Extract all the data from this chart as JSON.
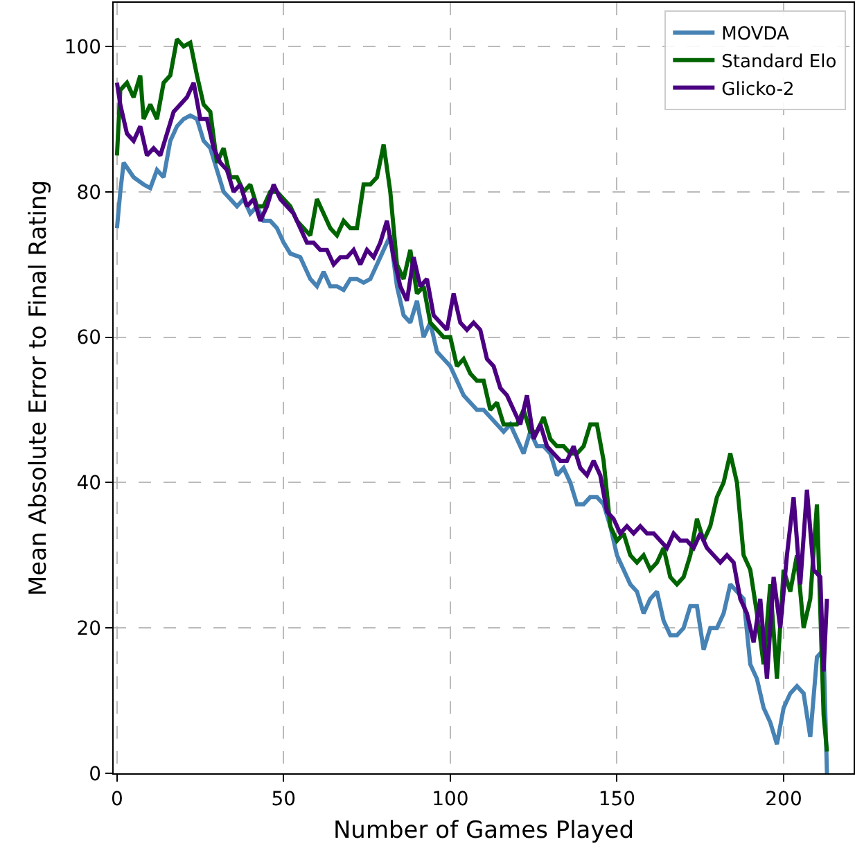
{
  "chart_data": {
    "type": "line",
    "xlabel": "Number of Games Played",
    "ylabel": "Mean Absolute Error to Final Rating",
    "xlim": [
      -1,
      221
    ],
    "xticks": [
      0,
      50,
      100,
      150,
      200
    ],
    "ylim": [
      0,
      106
    ],
    "yticks": [
      0,
      20,
      40,
      60,
      80,
      100
    ],
    "grid": true,
    "legend": "top right",
    "line_style": "solid",
    "marker": "none",
    "series": [
      {
        "name": "MOVDA",
        "color": "#4682b4",
        "x": [
          0,
          1,
          2,
          5,
          8,
          10,
          12,
          14,
          16,
          18,
          20,
          22,
          24,
          26,
          28,
          30,
          32,
          34,
          36,
          38,
          40,
          42,
          44,
          46,
          48,
          50,
          52,
          55,
          58,
          60,
          62,
          64,
          66,
          68,
          70,
          72,
          74,
          76,
          78,
          80,
          82,
          84,
          86,
          88,
          90,
          92,
          94,
          96,
          98,
          100,
          102,
          104,
          106,
          108,
          110,
          112,
          114,
          116,
          118,
          120,
          122,
          124,
          126,
          128,
          130,
          132,
          134,
          136,
          138,
          140,
          142,
          144,
          146,
          148,
          150,
          152,
          154,
          156,
          158,
          160,
          162,
          164,
          166,
          168,
          170,
          172,
          174,
          176,
          178,
          180,
          182,
          184,
          186,
          188,
          190,
          192,
          194,
          196,
          198,
          200,
          202,
          204,
          206,
          208,
          210,
          212,
          213
        ],
        "values": [
          75,
          80,
          84,
          82,
          81,
          80.5,
          83,
          82,
          87,
          89,
          90,
          90.5,
          90,
          87,
          86,
          83,
          80,
          79,
          78,
          79,
          77,
          78,
          76,
          76,
          75,
          73,
          71.5,
          71,
          68,
          67,
          69,
          67,
          67,
          66.5,
          68,
          68,
          67.5,
          68,
          70,
          72,
          74,
          67,
          63,
          62,
          65,
          60,
          62,
          58,
          57,
          56,
          54,
          52,
          51,
          50,
          50,
          49,
          48,
          47,
          48,
          46,
          44,
          47,
          45,
          45,
          44,
          41,
          42,
          40,
          37,
          37,
          38,
          38,
          37,
          34,
          30,
          28,
          26,
          25,
          22,
          24,
          25,
          21,
          19,
          19,
          20,
          23,
          23,
          17,
          20,
          20,
          22,
          26,
          25,
          24,
          15,
          13,
          9,
          7,
          4,
          9,
          11,
          12,
          11,
          5,
          16,
          17,
          0
        ]
      },
      {
        "name": "Standard Elo",
        "color": "#006400",
        "x": [
          0,
          1,
          3,
          5,
          7,
          8,
          10,
          12,
          14,
          16,
          18,
          20,
          22,
          24,
          26,
          28,
          30,
          32,
          34,
          36,
          38,
          40,
          42,
          44,
          46,
          48,
          50,
          52,
          54,
          56,
          58,
          60,
          62,
          64,
          66,
          68,
          70,
          72,
          74,
          76,
          78,
          80,
          82,
          84,
          86,
          88,
          90,
          92,
          94,
          96,
          98,
          100,
          102,
          104,
          106,
          108,
          110,
          112,
          114,
          116,
          118,
          120,
          122,
          124,
          126,
          128,
          130,
          132,
          134,
          136,
          138,
          140,
          142,
          144,
          146,
          148,
          150,
          152,
          154,
          156,
          158,
          160,
          162,
          164,
          166,
          168,
          170,
          172,
          174,
          176,
          178,
          180,
          182,
          184,
          186,
          188,
          190,
          192,
          194,
          196,
          198,
          200,
          202,
          204,
          206,
          208,
          210,
          212,
          213
        ],
        "values": [
          85,
          94,
          95,
          93,
          96,
          90,
          92,
          90,
          95,
          96,
          101,
          100,
          100.5,
          96,
          92,
          91,
          84,
          86,
          82,
          82,
          80,
          81,
          78,
          78,
          80,
          80,
          79,
          78,
          76,
          75,
          74,
          79,
          77,
          75,
          74,
          76,
          75,
          75,
          81,
          81,
          82,
          86.5,
          80,
          70,
          68,
          72,
          66,
          67,
          62,
          61,
          60,
          60,
          56,
          57,
          55,
          54,
          54,
          50,
          51,
          48,
          48,
          48,
          50,
          47,
          47,
          49,
          46,
          45,
          45,
          44,
          44,
          45,
          48,
          48,
          43,
          34,
          32,
          33,
          30,
          29,
          30,
          28,
          29,
          31,
          27,
          26,
          27,
          30,
          35,
          32,
          34,
          38,
          40,
          44,
          40,
          30,
          28,
          22,
          15,
          26,
          13,
          28,
          25,
          30,
          20,
          24,
          37,
          8,
          3
        ]
      },
      {
        "name": "Glicko-2",
        "color": "#4b0082",
        "x": [
          0,
          1,
          3,
          5,
          7,
          9,
          11,
          13,
          15,
          17,
          19,
          21,
          23,
          25,
          27,
          29,
          31,
          33,
          35,
          37,
          39,
          41,
          43,
          45,
          47,
          49,
          51,
          53,
          55,
          57,
          59,
          61,
          63,
          65,
          67,
          69,
          71,
          73,
          75,
          77,
          79,
          81,
          83,
          85,
          87,
          89,
          91,
          93,
          95,
          97,
          99,
          101,
          103,
          105,
          107,
          109,
          111,
          113,
          115,
          117,
          119,
          121,
          123,
          125,
          127,
          129,
          131,
          133,
          135,
          137,
          139,
          141,
          143,
          145,
          147,
          149,
          151,
          153,
          155,
          157,
          159,
          161,
          163,
          165,
          167,
          169,
          171,
          173,
          175,
          177,
          179,
          181,
          183,
          185,
          187,
          189,
          191,
          193,
          195,
          197,
          199,
          201,
          203,
          205,
          207,
          209,
          211,
          212,
          213
        ],
        "values": [
          95,
          92,
          88,
          87,
          89,
          85,
          86,
          85,
          88,
          91,
          92,
          93,
          95,
          90,
          90,
          86,
          84,
          83,
          80,
          81,
          78,
          79,
          76,
          78,
          81,
          79,
          78,
          77,
          75,
          73,
          73,
          72,
          72,
          70,
          71,
          71,
          72,
          70,
          72,
          71,
          73,
          76,
          71,
          67,
          65,
          71,
          67,
          68,
          63,
          62,
          61,
          66,
          62,
          61,
          62,
          61,
          57,
          56,
          53,
          52,
          50,
          48,
          52,
          46,
          48,
          45,
          44,
          43,
          43,
          45,
          42,
          41,
          43,
          41,
          36,
          35,
          33,
          34,
          33,
          34,
          33,
          33,
          32,
          31,
          33,
          32,
          32,
          31,
          33,
          31,
          30,
          29,
          30,
          29,
          24,
          22,
          18,
          24,
          13,
          27,
          20,
          30,
          38,
          26,
          39,
          28,
          27,
          14,
          24
        ]
      }
    ]
  }
}
